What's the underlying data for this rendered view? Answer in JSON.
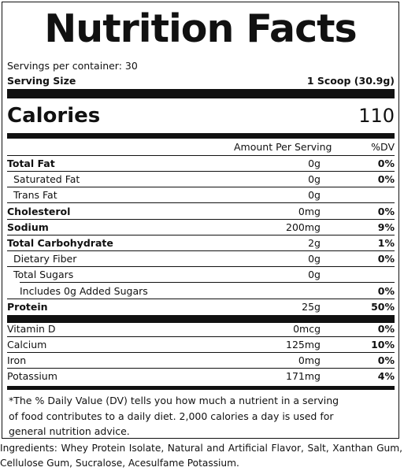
{
  "title": "Nutrition Facts",
  "servings": "Servings per container: 30",
  "serving_size": {
    "label": "Serving Size",
    "value": "1 Scoop (30.9g)"
  },
  "calories": {
    "label": "Calories",
    "value": "110"
  },
  "header": {
    "amount": "Amount Per Serving",
    "dv": "%DV"
  },
  "nutrients": [
    {
      "name": "Total Fat",
      "amount": "0g",
      "dv": "0%"
    },
    {
      "name": "Saturated Fat",
      "amount": "0g",
      "dv": "0%"
    },
    {
      "name": "Trans Fat",
      "amount": "0g",
      "dv": ""
    },
    {
      "name": "Cholesterol",
      "amount": "0mg",
      "dv": "0%"
    },
    {
      "name": "Sodium",
      "amount": "200mg",
      "dv": "9%"
    },
    {
      "name": "Total Carbohydrate",
      "amount": "2g",
      "dv": "1%"
    },
    {
      "name": "Dietary Fiber",
      "amount": "0g",
      "dv": "0%"
    },
    {
      "name": "Total Sugars",
      "amount": "0g",
      "dv": ""
    },
    {
      "name": "Includes 0g Added Sugars",
      "amount": "",
      "dv": "0%"
    },
    {
      "name": "Protein",
      "amount": "25g",
      "dv": "50%"
    }
  ],
  "vitamins": [
    {
      "name": "Vitamin D",
      "amount": "0mcg",
      "dv": "0%"
    },
    {
      "name": "Calcium",
      "amount": "125mg",
      "dv": "10%"
    },
    {
      "name": "Iron",
      "amount": "0mg",
      "dv": "0%"
    },
    {
      "name": "Potassium",
      "amount": "171mg",
      "dv": "4%"
    }
  ],
  "footnote": "*The % Daily Value (DV) tells you how much a nutrient in a serving of food contributes to a daily diet. 2,000 calories a day is used for general nutrition advice.",
  "ingredients": "Ingredients: Whey Protein Isolate, Natural and Artificial Flavor, Salt, Xanthan Gum, Cellulose Gum, Sucralose, Acesulfame Potassium."
}
